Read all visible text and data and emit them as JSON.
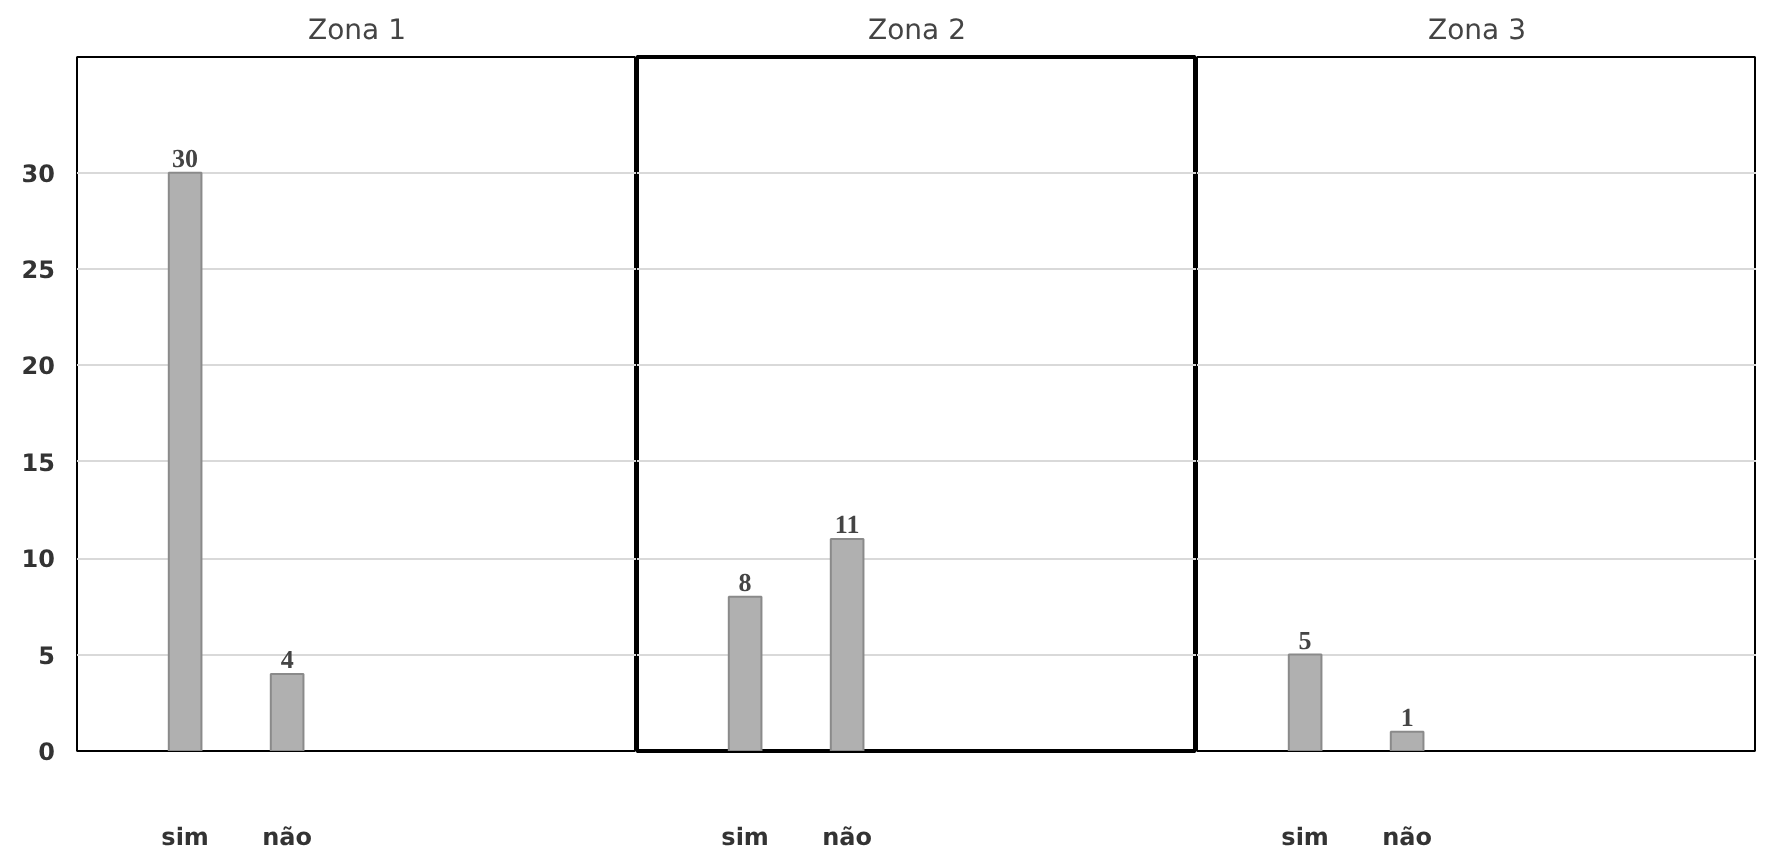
{
  "chart_data": [
    {
      "type": "bar",
      "title": "Zona 1",
      "categories": [
        "sim",
        "não"
      ],
      "values": [
        30,
        4
      ],
      "color": "#b0b0b0",
      "data_labels": true,
      "ylim": [
        0,
        36
      ],
      "yticks": [
        0,
        5,
        10,
        15,
        20,
        25,
        30
      ],
      "grid": "y"
    },
    {
      "type": "bar",
      "title": "Zona 2",
      "categories": [
        "sim",
        "não"
      ],
      "values": [
        8,
        11
      ],
      "color": "#b0b0b0",
      "data_labels": true,
      "ylim": [
        0,
        36
      ],
      "yticks": [
        0,
        5,
        10,
        15,
        20,
        25,
        30
      ],
      "grid": "y",
      "tick_labels": "x"
    },
    {
      "type": "bar",
      "title": "Zona 3",
      "categories": [
        "sim",
        "não"
      ],
      "values": [
        5,
        1
      ],
      "color": "#b0b0b0",
      "data_labels": true,
      "ylim": [
        0,
        36
      ],
      "yticks": [
        0,
        5,
        10,
        15,
        20,
        25,
        30
      ],
      "grid": "y",
      "tick_labels": "x"
    }
  ]
}
